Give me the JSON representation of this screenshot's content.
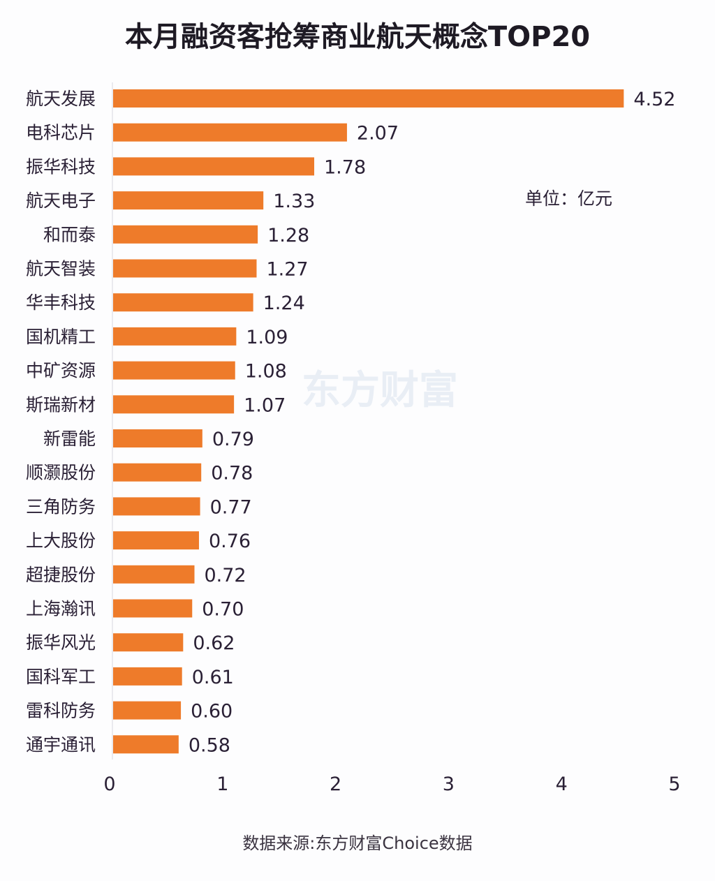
{
  "chart_data": {
    "type": "bar",
    "orientation": "horizontal",
    "title": "本月融资客抢筹商业航天概念TOP20",
    "unit_label": "单位：亿元",
    "source": "数据来源:东方财富Choice数据",
    "watermark": "东方财富",
    "categories": [
      "航天发展",
      "电科芯片",
      "振华科技",
      "航天电子",
      "和而泰",
      "航天智装",
      "华丰科技",
      "国机精工",
      "中矿资源",
      "斯瑞新材",
      "新雷能",
      "顺灏股份",
      "三角防务",
      "上大股份",
      "超捷股份",
      "上海瀚讯",
      "振华风光",
      "国科军工",
      "雷科防务",
      "通宇通讯"
    ],
    "values": [
      4.52,
      2.07,
      1.78,
      1.33,
      1.28,
      1.27,
      1.24,
      1.09,
      1.08,
      1.07,
      0.79,
      0.78,
      0.77,
      0.76,
      0.72,
      0.7,
      0.62,
      0.61,
      0.6,
      0.58
    ],
    "value_labels": [
      "4.52",
      "2.07",
      "1.78",
      "1.33",
      "1.28",
      "1.27",
      "1.24",
      "1.09",
      "1.08",
      "1.07",
      "0.79",
      "0.78",
      "0.77",
      "0.76",
      "0.72",
      "0.70",
      "0.62",
      "0.61",
      "0.60",
      "0.58"
    ],
    "xlim": [
      0,
      5
    ],
    "xticks": [
      "0",
      "1",
      "2",
      "3",
      "4",
      "5"
    ],
    "xlabel": "",
    "ylabel": "",
    "grid": false,
    "bar_color": "#ee7b2a"
  }
}
